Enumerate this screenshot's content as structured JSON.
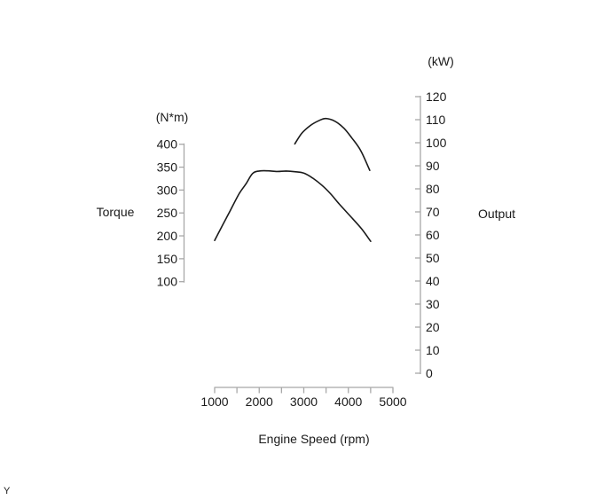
{
  "page": {
    "corner_label": "Y"
  },
  "chart_data": {
    "type": "line",
    "title": "",
    "description": "Engine torque and power output curves versus engine speed",
    "grid": false,
    "legend": false,
    "axis_color": "#a8a8a8",
    "curve_color": "#1a1a1a",
    "x_axis": {
      "label": "Engine Speed (rpm)",
      "min": 1000,
      "max": 5000,
      "major_tick_values": [
        1000,
        2000,
        3000,
        4000,
        5000
      ],
      "major_tick_labels": [
        "1000",
        "2000",
        "3000",
        "4000",
        "5000"
      ],
      "minor_tick_values": [
        1500,
        2500,
        3500,
        4500
      ]
    },
    "left_axis": {
      "title": "Torque",
      "unit_label": "(N*m)",
      "min": 100,
      "max": 400,
      "tick_values": [
        400,
        350,
        300,
        250,
        200,
        150,
        100
      ],
      "tick_labels": [
        "400",
        "350",
        "300",
        "250",
        "200",
        "150",
        "100"
      ]
    },
    "right_axis": {
      "title": "Output",
      "unit_label": "(kW)",
      "min": 0,
      "max": 120,
      "tick_values": [
        120,
        110,
        100,
        90,
        80,
        70,
        60,
        50,
        40,
        30,
        20,
        10,
        0
      ],
      "tick_labels": [
        "120",
        "110",
        "100",
        "90",
        "80",
        "70",
        "60",
        "50",
        "40",
        "30",
        "20",
        "10",
        "0"
      ]
    },
    "series": [
      {
        "name": "torque-curve",
        "axis": "left",
        "unit": "N*m",
        "points": [
          [
            1000,
            190
          ],
          [
            1150,
            218
          ],
          [
            1350,
            255
          ],
          [
            1550,
            292
          ],
          [
            1700,
            313
          ],
          [
            1850,
            336
          ],
          [
            2000,
            341.5
          ],
          [
            2200,
            342
          ],
          [
            2400,
            340.5
          ],
          [
            2600,
            341.5
          ],
          [
            2800,
            340
          ],
          [
            3000,
            337
          ],
          [
            3200,
            326
          ],
          [
            3400,
            311
          ],
          [
            3600,
            292
          ],
          [
            3800,
            269
          ],
          [
            4100,
            237
          ],
          [
            4300,
            215
          ],
          [
            4500,
            188
          ]
        ]
      },
      {
        "name": "output-curve",
        "axis": "right",
        "unit": "kW",
        "points": [
          [
            2800,
            99.5
          ],
          [
            2950,
            104
          ],
          [
            3150,
            107.5
          ],
          [
            3350,
            109.7
          ],
          [
            3500,
            110.5
          ],
          [
            3700,
            109.3
          ],
          [
            3900,
            106.3
          ],
          [
            4080,
            102
          ],
          [
            4280,
            96.5
          ],
          [
            4480,
            88
          ]
        ]
      }
    ]
  }
}
